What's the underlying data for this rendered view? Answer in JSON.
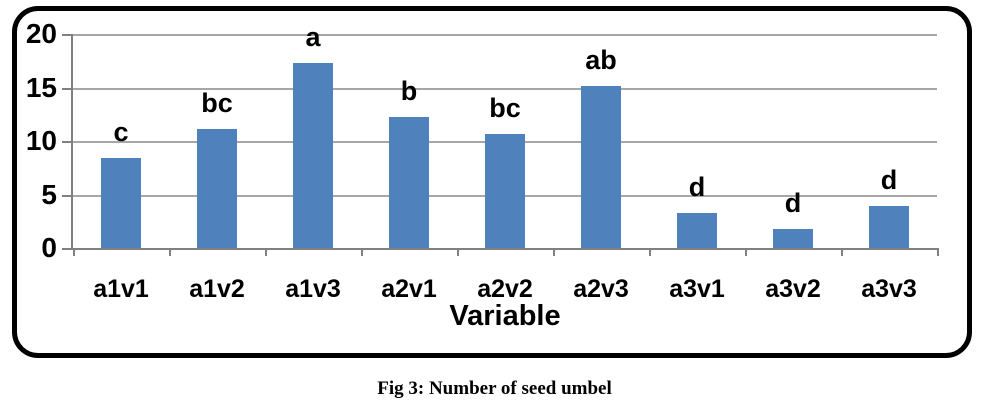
{
  "figure": {
    "caption": "Fig 3: Number of seed umbel"
  },
  "chart_data": {
    "type": "bar",
    "title": "",
    "xlabel": "Variable",
    "ylabel": "",
    "categories": [
      "a1v1",
      "a1v2",
      "a1v3",
      "a2v1",
      "a2v2",
      "a2v3",
      "a3v1",
      "a3v2",
      "a3v3"
    ],
    "values": [
      8.4,
      11.1,
      17.3,
      12.2,
      10.7,
      15.1,
      3.3,
      1.8,
      3.9
    ],
    "bar_labels": [
      "c",
      "bc",
      "a",
      "b",
      "bc",
      "ab",
      "d",
      "d",
      "d"
    ],
    "yticks": [
      0,
      5,
      10,
      15,
      20
    ],
    "ylim": [
      0,
      20
    ],
    "grid": true,
    "legend": "none",
    "colors": {
      "bar": "#4f81bd",
      "gridline": "#a6a6a6",
      "axis": "#808080",
      "frame_border": "#000000",
      "text": "#000000"
    }
  }
}
